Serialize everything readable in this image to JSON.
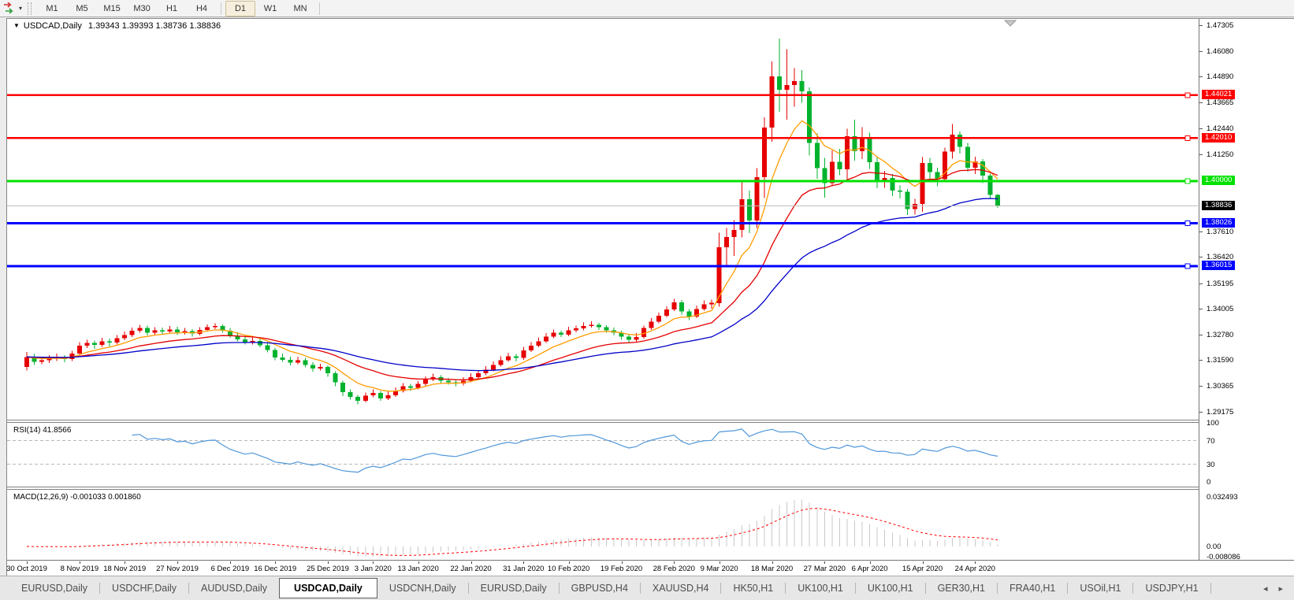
{
  "toolbar": {
    "timeframes": [
      "M1",
      "M5",
      "M15",
      "M30",
      "H1",
      "H4",
      "D1",
      "W1",
      "MN"
    ],
    "active_timeframe": "D1"
  },
  "window": {
    "title_symbol": "USDCAD,Daily",
    "title_ohlc": "1.39343 1.39393 1.38736 1.38836"
  },
  "chart_data": {
    "type": "candlestick",
    "symbol": "USDCAD",
    "timeframe": "Daily",
    "current_bar": {
      "open": 1.39343,
      "high": 1.39393,
      "low": 1.38736,
      "close": 1.38836
    },
    "colors": {
      "bull": "#e60000",
      "bear": "#00b22d",
      "ma_fast": "#ff9c00",
      "ma_mid": "#e60000",
      "ma_slow": "#0000c8",
      "current_price_line": "#c0c0c0",
      "rsi_line": "#4f97d9",
      "macd_hist": "#c9c9c9",
      "macd_signal": "#ff0000",
      "badge_current_bg": "#000000"
    },
    "price_axis": {
      "top_value": 1.47305,
      "bottom_value": 1.29175,
      "ticks": [
        "1.47305",
        "1.46080",
        "1.44890",
        "1.43665",
        "1.42440",
        "1.41250",
        "1.37610",
        "1.36420",
        "1.35195",
        "1.34005",
        "1.32780",
        "1.31590",
        "1.30365",
        "1.29175"
      ],
      "badges": [
        {
          "text": "1.44021",
          "value": 1.44021,
          "bg": "#ff0000"
        },
        {
          "text": "1.42010",
          "value": 1.4201,
          "bg": "#ff0000"
        },
        {
          "text": "1.40000",
          "value": 1.4,
          "bg": "#00e100"
        },
        {
          "text": "1.38836",
          "value": 1.38836,
          "bg": "#000000"
        },
        {
          "text": "1.38026",
          "value": 1.38026,
          "bg": "#0000ff"
        },
        {
          "text": "1.36015",
          "value": 1.36015,
          "bg": "#0000ff"
        }
      ]
    },
    "hlines": [
      {
        "value": 1.44021,
        "color": "#ff0000",
        "width": 2.5
      },
      {
        "value": 1.4201,
        "color": "#ff0000",
        "width": 2.5
      },
      {
        "value": 1.4,
        "color": "#00e100",
        "width": 3
      },
      {
        "value": 1.38026,
        "color": "#0000ff",
        "width": 3
      },
      {
        "value": 1.36015,
        "color": "#0000ff",
        "width": 3
      }
    ],
    "moving_averages": [
      {
        "period": 8,
        "color": "#ff9c00"
      },
      {
        "period": 21,
        "color": "#e60000"
      },
      {
        "period": 45,
        "color": "#0000c8"
      }
    ],
    "date_labels": [
      {
        "text": "30 Oct 2019",
        "index": 0
      },
      {
        "text": "8 Nov 2019",
        "index": 7
      },
      {
        "text": "18 Nov 2019",
        "index": 13
      },
      {
        "text": "27 Nov 2019",
        "index": 20
      },
      {
        "text": "6 Dec 2019",
        "index": 27
      },
      {
        "text": "16 Dec 2019",
        "index": 33
      },
      {
        "text": "25 Dec 2019",
        "index": 40
      },
      {
        "text": "3 Jan 2020",
        "index": 46
      },
      {
        "text": "13 Jan 2020",
        "index": 52
      },
      {
        "text": "22 Jan 2020",
        "index": 59
      },
      {
        "text": "31 Jan 2020",
        "index": 66
      },
      {
        "text": "10 Feb 2020",
        "index": 72
      },
      {
        "text": "19 Feb 2020",
        "index": 79
      },
      {
        "text": "28 Feb 2020",
        "index": 86
      },
      {
        "text": "9 Mar 2020",
        "index": 92
      },
      {
        "text": "18 Mar 2020",
        "index": 99
      },
      {
        "text": "27 Mar 2020",
        "index": 106
      },
      {
        "text": "6 Apr 2020",
        "index": 112
      },
      {
        "text": "15 Apr 2020",
        "index": 119
      },
      {
        "text": "24 Apr 2020",
        "index": 126
      }
    ],
    "candles": [
      [
        1.3128,
        1.3198,
        1.3112,
        1.3175
      ],
      [
        1.3175,
        1.3189,
        1.3138,
        1.3152
      ],
      [
        1.3152,
        1.3176,
        1.314,
        1.316
      ],
      [
        1.316,
        1.3184,
        1.3147,
        1.3168
      ],
      [
        1.3168,
        1.319,
        1.3155,
        1.3172
      ],
      [
        1.3172,
        1.3183,
        1.315,
        1.3165
      ],
      [
        1.3165,
        1.3204,
        1.3156,
        1.319
      ],
      [
        1.319,
        1.3244,
        1.3182,
        1.3228
      ],
      [
        1.3228,
        1.3256,
        1.3216,
        1.324
      ],
      [
        1.324,
        1.3252,
        1.3212,
        1.3232
      ],
      [
        1.3232,
        1.3264,
        1.3223,
        1.3248
      ],
      [
        1.3248,
        1.326,
        1.3224,
        1.3242
      ],
      [
        1.3242,
        1.3278,
        1.3233,
        1.3262
      ],
      [
        1.3262,
        1.3295,
        1.3254,
        1.3278
      ],
      [
        1.3278,
        1.3312,
        1.3269,
        1.3298
      ],
      [
        1.3298,
        1.3326,
        1.3288,
        1.331
      ],
      [
        1.331,
        1.3322,
        1.3276,
        1.3288
      ],
      [
        1.3288,
        1.3314,
        1.3278,
        1.33
      ],
      [
        1.33,
        1.3312,
        1.328,
        1.3294
      ],
      [
        1.3294,
        1.332,
        1.3285,
        1.3304
      ],
      [
        1.3304,
        1.3316,
        1.3278,
        1.329
      ],
      [
        1.329,
        1.331,
        1.328,
        1.3296
      ],
      [
        1.3296,
        1.3306,
        1.327,
        1.3284
      ],
      [
        1.3284,
        1.3314,
        1.3276,
        1.3302
      ],
      [
        1.3302,
        1.3328,
        1.3294,
        1.3315
      ],
      [
        1.3315,
        1.3333,
        1.3305,
        1.332
      ],
      [
        1.332,
        1.3328,
        1.3288,
        1.3298
      ],
      [
        1.3298,
        1.331,
        1.3264,
        1.3274
      ],
      [
        1.3274,
        1.329,
        1.3248,
        1.3258
      ],
      [
        1.3258,
        1.3274,
        1.3233,
        1.3242
      ],
      [
        1.3242,
        1.3266,
        1.3233,
        1.325
      ],
      [
        1.325,
        1.3262,
        1.322,
        1.323
      ],
      [
        1.323,
        1.3244,
        1.3196,
        1.3208
      ],
      [
        1.3208,
        1.3218,
        1.316,
        1.3172
      ],
      [
        1.3172,
        1.319,
        1.3152,
        1.3162
      ],
      [
        1.3162,
        1.3176,
        1.3136,
        1.3148
      ],
      [
        1.3148,
        1.3176,
        1.314,
        1.316
      ],
      [
        1.316,
        1.317,
        1.3126,
        1.3138
      ],
      [
        1.3138,
        1.315,
        1.3106,
        1.312
      ],
      [
        1.312,
        1.3142,
        1.3111,
        1.3128
      ],
      [
        1.3128,
        1.3136,
        1.3082,
        1.3098
      ],
      [
        1.3098,
        1.3108,
        1.3038,
        1.3055
      ],
      [
        1.3055,
        1.3064,
        1.2992,
        1.301
      ],
      [
        1.301,
        1.3022,
        1.2975,
        1.2988
      ],
      [
        1.2988,
        1.2996,
        1.2952,
        1.297
      ],
      [
        1.297,
        1.3008,
        1.2962,
        1.2994
      ],
      [
        1.2994,
        1.3022,
        1.2985,
        1.3006
      ],
      [
        1.3006,
        1.3016,
        1.297,
        1.298
      ],
      [
        1.298,
        1.3012,
        1.2972,
        1.2995
      ],
      [
        1.2995,
        1.3032,
        1.2988,
        1.3015
      ],
      [
        1.3015,
        1.3052,
        1.3008,
        1.3038
      ],
      [
        1.3038,
        1.3048,
        1.3016,
        1.303
      ],
      [
        1.303,
        1.3062,
        1.3022,
        1.3048
      ],
      [
        1.3048,
        1.3084,
        1.304,
        1.307
      ],
      [
        1.307,
        1.3096,
        1.3062,
        1.308
      ],
      [
        1.308,
        1.309,
        1.3052,
        1.3064
      ],
      [
        1.3064,
        1.3076,
        1.3044,
        1.3056
      ],
      [
        1.3056,
        1.307,
        1.3038,
        1.305
      ],
      [
        1.305,
        1.308,
        1.3042,
        1.3064
      ],
      [
        1.3064,
        1.3098,
        1.3056,
        1.308
      ],
      [
        1.308,
        1.3114,
        1.3072,
        1.3098
      ],
      [
        1.3098,
        1.3132,
        1.309,
        1.3115
      ],
      [
        1.3115,
        1.3154,
        1.3107,
        1.3138
      ],
      [
        1.3138,
        1.3178,
        1.313,
        1.316
      ],
      [
        1.316,
        1.3195,
        1.3152,
        1.3178
      ],
      [
        1.3178,
        1.3188,
        1.3154,
        1.317
      ],
      [
        1.317,
        1.3222,
        1.3162,
        1.3206
      ],
      [
        1.3206,
        1.3245,
        1.3198,
        1.3228
      ],
      [
        1.3228,
        1.3266,
        1.322,
        1.3248
      ],
      [
        1.3248,
        1.3286,
        1.324,
        1.327
      ],
      [
        1.327,
        1.3304,
        1.3262,
        1.3288
      ],
      [
        1.3288,
        1.3298,
        1.3268,
        1.328
      ],
      [
        1.328,
        1.3316,
        1.3272,
        1.33
      ],
      [
        1.33,
        1.3322,
        1.329,
        1.3308
      ],
      [
        1.3308,
        1.3336,
        1.33,
        1.332
      ],
      [
        1.332,
        1.3342,
        1.3312,
        1.3326
      ],
      [
        1.3326,
        1.3334,
        1.3302,
        1.3314
      ],
      [
        1.3314,
        1.3324,
        1.3288,
        1.33
      ],
      [
        1.33,
        1.3312,
        1.3276,
        1.3288
      ],
      [
        1.3288,
        1.3298,
        1.3256,
        1.327
      ],
      [
        1.327,
        1.3282,
        1.3242,
        1.3255
      ],
      [
        1.3255,
        1.3286,
        1.3247,
        1.3268
      ],
      [
        1.3268,
        1.3322,
        1.326,
        1.331
      ],
      [
        1.331,
        1.3356,
        1.3302,
        1.334
      ],
      [
        1.334,
        1.3382,
        1.3332,
        1.3368
      ],
      [
        1.3368,
        1.3412,
        1.336,
        1.3398
      ],
      [
        1.3398,
        1.3448,
        1.339,
        1.343
      ],
      [
        1.343,
        1.3442,
        1.3374,
        1.3388
      ],
      [
        1.3388,
        1.34,
        1.3348,
        1.3365
      ],
      [
        1.3365,
        1.3416,
        1.3357,
        1.34
      ],
      [
        1.34,
        1.344,
        1.3392,
        1.3422
      ],
      [
        1.3422,
        1.3444,
        1.3402,
        1.3428
      ],
      [
        1.3428,
        1.3758,
        1.341,
        1.369
      ],
      [
        1.369,
        1.378,
        1.3596,
        1.3738
      ],
      [
        1.3738,
        1.3816,
        1.3648,
        1.377
      ],
      [
        1.377,
        1.3998,
        1.3735,
        1.3915
      ],
      [
        1.3915,
        1.3956,
        1.3756,
        1.3815
      ],
      [
        1.3815,
        1.406,
        1.378,
        1.4018
      ],
      [
        1.4018,
        1.4298,
        1.392,
        1.425
      ],
      [
        1.425,
        1.456,
        1.4184,
        1.449
      ],
      [
        1.449,
        1.4668,
        1.4324,
        1.4428
      ],
      [
        1.4428,
        1.4618,
        1.4288,
        1.445
      ],
      [
        1.445,
        1.453,
        1.4348,
        1.4468
      ],
      [
        1.4468,
        1.452,
        1.4366,
        1.442
      ],
      [
        1.442,
        1.4438,
        1.412,
        1.4178
      ],
      [
        1.4178,
        1.4222,
        1.401,
        1.406
      ],
      [
        1.406,
        1.4108,
        1.3922,
        1.399
      ],
      [
        1.399,
        1.4144,
        1.3976,
        1.409
      ],
      [
        1.409,
        1.415,
        1.4028,
        1.4055
      ],
      [
        1.4055,
        1.4245,
        1.4008,
        1.421
      ],
      [
        1.421,
        1.4288,
        1.4096,
        1.414
      ],
      [
        1.414,
        1.4252,
        1.4102,
        1.4205
      ],
      [
        1.4205,
        1.4226,
        1.4056,
        1.4088
      ],
      [
        1.4088,
        1.4116,
        1.3966,
        1.4005
      ],
      [
        1.4005,
        1.4048,
        1.3968,
        1.4015
      ],
      [
        1.4015,
        1.4032,
        1.393,
        1.3955
      ],
      [
        1.3955,
        1.398,
        1.3918,
        1.395
      ],
      [
        1.395,
        1.3962,
        1.384,
        1.3868
      ],
      [
        1.3868,
        1.3916,
        1.3842,
        1.3892
      ],
      [
        1.3892,
        1.4112,
        1.3855,
        1.4085
      ],
      [
        1.4085,
        1.4108,
        1.4008,
        1.4042
      ],
      [
        1.4042,
        1.4062,
        1.3976,
        1.4008
      ],
      [
        1.4008,
        1.4156,
        1.3998,
        1.4138
      ],
      [
        1.4138,
        1.4268,
        1.4105,
        1.4218
      ],
      [
        1.4218,
        1.4232,
        1.4128,
        1.416
      ],
      [
        1.416,
        1.4178,
        1.4044,
        1.4062
      ],
      [
        1.4062,
        1.4114,
        1.4032,
        1.4092
      ],
      [
        1.4092,
        1.4102,
        1.399,
        1.4025
      ],
      [
        1.4025,
        1.4034,
        1.392,
        1.39343
      ],
      [
        1.39343,
        1.39393,
        1.38736,
        1.38836
      ]
    ],
    "rsi": {
      "label": "RSI(14)",
      "value": "41.8566",
      "period": 14,
      "axis_labels": [
        "100",
        "70",
        "30",
        "0"
      ],
      "levels": [
        70,
        30
      ]
    },
    "macd": {
      "label": "MACD(12,26,9)",
      "values_text": "-0.001033 0.001860",
      "fast": 12,
      "slow": 26,
      "signal": 9,
      "axis_labels": [
        "0.032493",
        "0.00",
        "-0.008086"
      ]
    }
  },
  "tabs": {
    "items": [
      "EURUSD,Daily",
      "USDCHF,Daily",
      "AUDUSD,Daily",
      "USDCAD,Daily",
      "USDCNH,Daily",
      "EURUSD,Daily",
      "GBPUSD,H4",
      "XAUUSD,H4",
      "HK50,H1",
      "UK100,H1",
      "UK100,H1",
      "GER30,H1",
      "FRA40,H1",
      "USOil,H1",
      "USDJPY,H1"
    ],
    "active_index": 3,
    "scroll_left_icon": "◂",
    "scroll_right_icon": "▸"
  }
}
